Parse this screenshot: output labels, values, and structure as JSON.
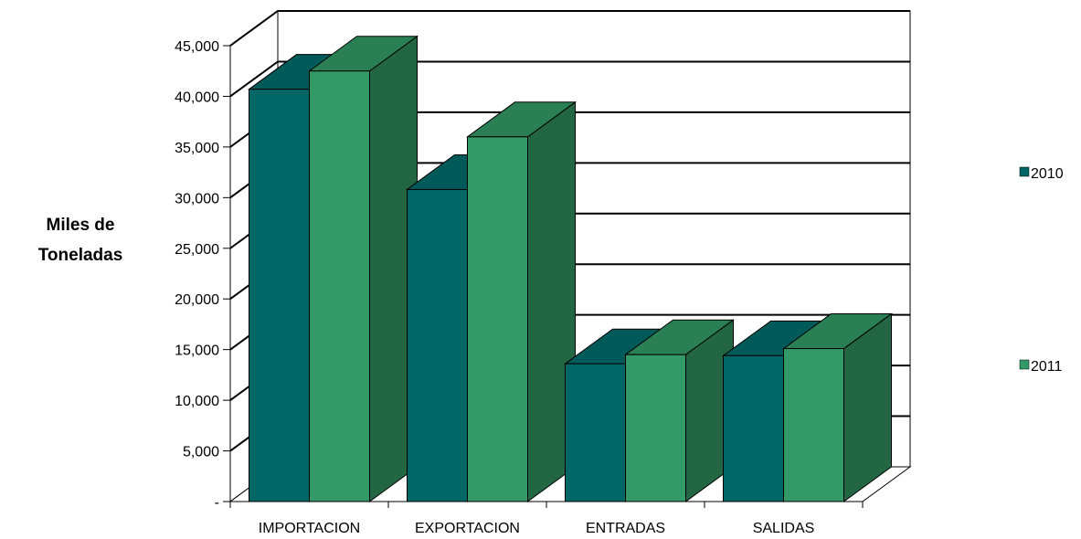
{
  "chart_data": {
    "type": "bar",
    "style": "3d-clustered-column",
    "categories": [
      "IMPORTACION",
      "EXPORTACION",
      "ENTRADAS",
      "SALIDAS"
    ],
    "series": [
      {
        "name": "2010",
        "values": [
          40700,
          30800,
          13600,
          14400
        ],
        "color": "#006766",
        "side_color": "#004d4c",
        "top_color": "#005a59"
      },
      {
        "name": "2011",
        "values": [
          42500,
          36000,
          14500,
          15100
        ],
        "color": "#339966",
        "side_color": "#226644",
        "top_color": "#2b7f55"
      }
    ],
    "ylabel": [
      "Miles de",
      "Toneladas"
    ],
    "ylim": [
      0,
      45000
    ],
    "ytick_step": 5000,
    "ytick_labels": [
      "-",
      "5,000",
      "10,000",
      "15,000",
      "20,000",
      "25,000",
      "30,000",
      "35,000",
      "40,000",
      "45,000"
    ],
    "grid": true,
    "legend_position": "right"
  }
}
